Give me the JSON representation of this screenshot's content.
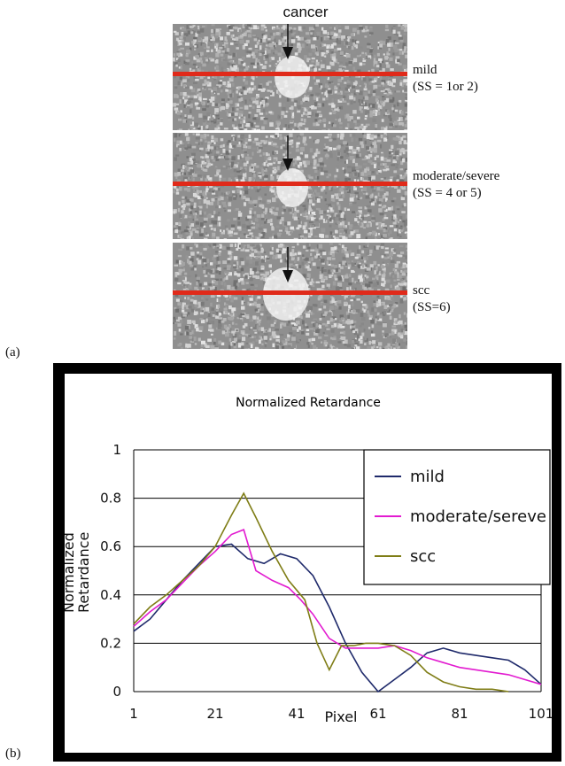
{
  "panel_a": {
    "top_label": "cancer",
    "panel_label": "(a)",
    "tiles": [
      {
        "label_line1": "mild",
        "label_line2": "(SS = 1or 2)"
      },
      {
        "label_line1": "moderate/severe",
        "label_line2": "(SS = 4 or 5)"
      },
      {
        "label_line1": "scc",
        "label_line2": "(SS=6)"
      }
    ],
    "colors": {
      "red_line": "#e02a1a",
      "background_gray": "#8f8f8f",
      "spot": "#f2f2f2"
    }
  },
  "panel_b": {
    "panel_label": "(b)"
  },
  "chart_data": {
    "type": "line",
    "title": "Normalized Retardance",
    "xlabel": "Pixel",
    "ylabel_line1": "Normalized",
    "ylabel_line2": "Retardance",
    "xlim": [
      1,
      101
    ],
    "ylim": [
      0,
      1
    ],
    "xticks": [
      "1",
      "21",
      "41",
      "61",
      "81",
      "101"
    ],
    "xtick_values": [
      1,
      21,
      41,
      61,
      81,
      101
    ],
    "yticks": [
      "0",
      "0.2",
      "0.4",
      "0.6",
      "0.8",
      "1"
    ],
    "ytick_values": [
      0,
      0.2,
      0.4,
      0.6,
      0.8,
      1
    ],
    "grid": "horizontal",
    "legend_placement": "top-right",
    "series": [
      {
        "name": "mild",
        "color": "#1f2a6b",
        "x": [
          1,
          5,
          9,
          13,
          17,
          21,
          25,
          29,
          33,
          37,
          41,
          45,
          49,
          53,
          57,
          61,
          65,
          69,
          73,
          77,
          81,
          85,
          89,
          93,
          97,
          101
        ],
        "y": [
          0.25,
          0.3,
          0.38,
          0.46,
          0.53,
          0.6,
          0.61,
          0.55,
          0.53,
          0.57,
          0.55,
          0.48,
          0.35,
          0.2,
          0.08,
          0.0,
          0.05,
          0.1,
          0.16,
          0.18,
          0.16,
          0.15,
          0.14,
          0.13,
          0.09,
          0.03
        ]
      },
      {
        "name": "moderate/sereve",
        "color": "#e21bd0",
        "x": [
          1,
          5,
          9,
          13,
          17,
          21,
          25,
          28,
          31,
          35,
          39,
          42,
          45,
          49,
          53,
          57,
          61,
          65,
          69,
          73,
          77,
          81,
          85,
          89,
          93,
          97,
          101
        ],
        "y": [
          0.27,
          0.33,
          0.38,
          0.45,
          0.52,
          0.58,
          0.65,
          0.67,
          0.5,
          0.46,
          0.43,
          0.38,
          0.32,
          0.22,
          0.18,
          0.18,
          0.18,
          0.19,
          0.17,
          0.14,
          0.12,
          0.1,
          0.09,
          0.08,
          0.07,
          0.05,
          0.03
        ]
      },
      {
        "name": "scc",
        "color": "#7f7d16",
        "x": [
          1,
          5,
          9,
          13,
          17,
          21,
          25,
          28,
          31,
          35,
          39,
          43,
          46,
          49,
          52,
          55,
          58,
          61,
          65,
          69,
          73,
          77,
          81,
          85,
          89,
          93
        ],
        "y": [
          0.28,
          0.35,
          0.4,
          0.46,
          0.52,
          0.6,
          0.73,
          0.82,
          0.72,
          0.58,
          0.46,
          0.38,
          0.2,
          0.09,
          0.19,
          0.19,
          0.2,
          0.2,
          0.19,
          0.15,
          0.08,
          0.04,
          0.02,
          0.01,
          0.01,
          0.0
        ]
      }
    ]
  }
}
